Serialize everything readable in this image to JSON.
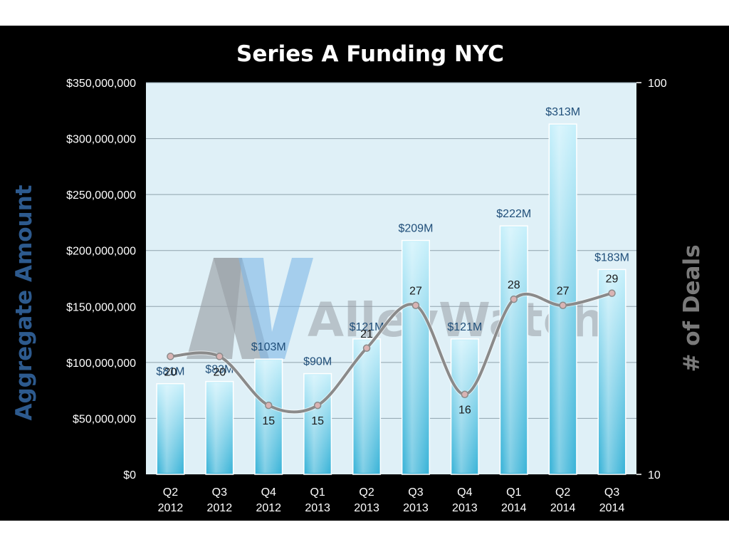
{
  "chart_data": {
    "type": "bar",
    "title": "Series A Funding NYC",
    "ylabel": "Aggregate Amount",
    "y2label": "# of Deals",
    "categories": [
      [
        "Q2",
        "2012"
      ],
      [
        "Q3",
        "2012"
      ],
      [
        "Q4",
        "2012"
      ],
      [
        "Q1",
        "2013"
      ],
      [
        "Q2",
        "2013"
      ],
      [
        "Q3",
        "2013"
      ],
      [
        "Q4",
        "2013"
      ],
      [
        "Q1",
        "2014"
      ],
      [
        "Q2",
        "2014"
      ],
      [
        "Q3",
        "2014"
      ]
    ],
    "series": [
      {
        "type": "bar",
        "axis": "left",
        "values": [
          81000000,
          83000000,
          103000000,
          90000000,
          121000000,
          209000000,
          121000000,
          222000000,
          313000000,
          183000000
        ],
        "labels": [
          "$81M",
          "$83M",
          "$103M",
          "$90M",
          "$121M",
          "$209M",
          "$121M",
          "$222M",
          "$313M",
          "$183M"
        ],
        "color": "#5ec8e8"
      },
      {
        "type": "line",
        "axis": "right",
        "values": [
          20,
          20,
          15,
          15,
          21,
          27,
          16,
          28,
          27,
          29
        ],
        "labels": [
          "20",
          "20",
          "15",
          "15",
          "21",
          "27",
          "16",
          "28",
          "27",
          "29"
        ],
        "color": "#8a8a8a"
      }
    ],
    "ylim": [
      0,
      350000000
    ],
    "yticks": [
      0,
      50000000,
      100000000,
      150000000,
      200000000,
      250000000,
      300000000,
      350000000
    ],
    "ytick_labels": [
      "$0",
      "$50,000,000",
      "$100,000,000",
      "$150,000,000",
      "$200,000,000",
      "$250,000,000",
      "$300,000,000",
      "$350,000,000"
    ],
    "y2scale": "log",
    "y2lim": [
      10,
      100
    ],
    "y2ticks": [
      10,
      100
    ],
    "y2tick_labels": [
      "10",
      "100"
    ],
    "grid": true,
    "legend": "none",
    "plot_background": "#dff0f7"
  },
  "watermark": {
    "mark": "AW",
    "text": "AlleyWatch"
  }
}
